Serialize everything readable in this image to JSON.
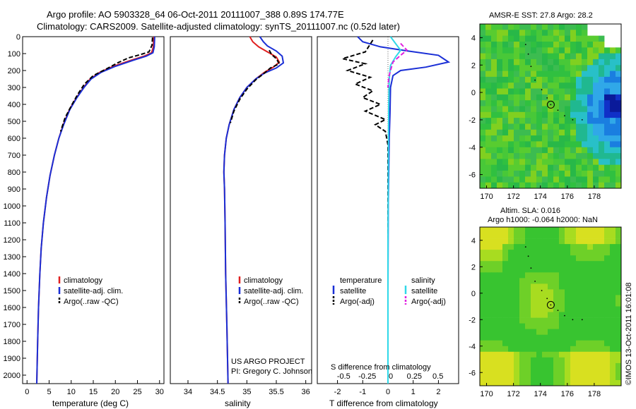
{
  "header": {
    "line1": "Argo profile: AO 5903328_64 06-Oct-2011 20111007_388 0.89S 174.77E",
    "line2": "Climatology: CARS2009. Satellite-adjusted climatology: synTS_20111007.nc (0.52d later)"
  },
  "colors": {
    "climatology": "#e02020",
    "satellite": "#1a2fd6",
    "argo": "#000000",
    "sal_sat": "#30d8e8",
    "sal_argo": "#e020e0"
  },
  "chart_data": [
    {
      "type": "line",
      "id": "temperature",
      "xlabel": "temperature (deg C)",
      "xlim": [
        -1,
        31
      ],
      "ylim": [
        2050,
        0
      ],
      "xticks": [
        0,
        5,
        10,
        15,
        20,
        25,
        30
      ],
      "xticklabels": [
        "0",
        "5",
        "10",
        "15",
        "20",
        "25",
        "30"
      ],
      "yticks": [
        0,
        100,
        200,
        300,
        400,
        500,
        600,
        700,
        800,
        900,
        1000,
        1100,
        1200,
        1300,
        1400,
        1500,
        1600,
        1700,
        1800,
        1900,
        2000
      ],
      "legend": [
        "climatology",
        "satellite-adj. clim.",
        "Argo(..raw -QC)"
      ],
      "series": [
        {
          "name": "climatology",
          "color": "#e02020",
          "points": [
            [
              28.7,
              0
            ],
            [
              28.6,
              60
            ],
            [
              28.2,
              95
            ],
            [
              26.5,
              115
            ],
            [
              23.5,
              140
            ],
            [
              19.5,
              175
            ],
            [
              16.5,
              210
            ],
            [
              14.3,
              250
            ],
            [
              12.8,
              300
            ],
            [
              11.2,
              360
            ],
            [
              9.6,
              430
            ],
            [
              8.2,
              520
            ],
            [
              7.2,
              600
            ],
            [
              6.2,
              700
            ],
            [
              5.2,
              820
            ],
            [
              4.4,
              950
            ],
            [
              3.7,
              1100
            ],
            [
              3.2,
              1250
            ],
            [
              2.9,
              1400
            ],
            [
              2.6,
              1600
            ],
            [
              2.4,
              1800
            ],
            [
              2.2,
              2050
            ]
          ]
        },
        {
          "name": "satellite-adj. clim.",
          "color": "#1a2fd6",
          "points": [
            [
              28.9,
              0
            ],
            [
              28.8,
              60
            ],
            [
              28.5,
              95
            ],
            [
              27.0,
              115
            ],
            [
              24.0,
              140
            ],
            [
              20.0,
              175
            ],
            [
              16.8,
              210
            ],
            [
              14.5,
              250
            ],
            [
              12.9,
              300
            ],
            [
              11.3,
              360
            ],
            [
              9.7,
              430
            ],
            [
              8.3,
              520
            ],
            [
              7.2,
              600
            ],
            [
              6.2,
              700
            ],
            [
              5.2,
              820
            ],
            [
              4.4,
              950
            ],
            [
              3.7,
              1100
            ],
            [
              3.2,
              1250
            ],
            [
              2.9,
              1400
            ],
            [
              2.6,
              1600
            ],
            [
              2.4,
              1800
            ],
            [
              2.2,
              2050
            ]
          ]
        },
        {
          "name": "Argo(..raw -QC)",
          "color": "#000000",
          "dashed": true,
          "points": [
            [
              28.4,
              5
            ],
            [
              28.3,
              50
            ],
            [
              27.6,
              90
            ],
            [
              25.8,
              105
            ],
            [
              23.0,
              125
            ],
            [
              20.5,
              155
            ],
            [
              18.0,
              190
            ],
            [
              15.0,
              230
            ],
            [
              13.0,
              280
            ],
            [
              11.5,
              340
            ],
            [
              10.2,
              400
            ],
            [
              8.6,
              480
            ],
            [
              7.6,
              560
            ]
          ]
        }
      ]
    },
    {
      "type": "line",
      "id": "salinity",
      "xlabel": "salinity",
      "xlim": [
        33.7,
        36.1
      ],
      "ylim": [
        2050,
        0
      ],
      "xticks": [
        34,
        34.5,
        35,
        35.5,
        36
      ],
      "xticklabels": [
        "34",
        "34.5",
        "35",
        "35.5",
        "36"
      ],
      "legend": [
        "climatology",
        "satellite-adj. clim.",
        "Argo(..raw -QC)"
      ],
      "series": [
        {
          "name": "climatology",
          "color": "#e02020",
          "points": [
            [
              35.05,
              0
            ],
            [
              35.1,
              30
            ],
            [
              35.2,
              60
            ],
            [
              35.35,
              90
            ],
            [
              35.5,
              120
            ],
            [
              35.55,
              150
            ],
            [
              35.45,
              180
            ],
            [
              35.3,
              210
            ],
            [
              35.15,
              250
            ],
            [
              35.0,
              300
            ],
            [
              34.88,
              360
            ],
            [
              34.78,
              430
            ],
            [
              34.7,
              520
            ],
            [
              34.65,
              600
            ],
            [
              34.62,
              700
            ],
            [
              34.61,
              800
            ],
            [
              34.62,
              900
            ],
            [
              34.63,
              1100
            ],
            [
              34.64,
              1400
            ],
            [
              34.66,
              1700
            ],
            [
              34.68,
              2050
            ]
          ]
        },
        {
          "name": "satellite-adj. clim.",
          "color": "#1a2fd6",
          "points": [
            [
              35.22,
              0
            ],
            [
              35.28,
              30
            ],
            [
              35.35,
              55
            ],
            [
              35.5,
              85
            ],
            [
              35.6,
              115
            ],
            [
              35.62,
              155
            ],
            [
              35.5,
              185
            ],
            [
              35.3,
              215
            ],
            [
              35.15,
              250
            ],
            [
              35.0,
              300
            ],
            [
              34.88,
              360
            ],
            [
              34.78,
              430
            ],
            [
              34.7,
              520
            ],
            [
              34.65,
              600
            ],
            [
              34.62,
              700
            ],
            [
              34.61,
              800
            ],
            [
              34.62,
              900
            ],
            [
              34.63,
              1100
            ],
            [
              34.64,
              1400
            ],
            [
              34.66,
              1700
            ],
            [
              34.68,
              2050
            ]
          ]
        },
        {
          "name": "Argo(..raw -QC)",
          "color": "#000000",
          "dashed": true,
          "points": [
            [
              35.38,
              80
            ],
            [
              35.42,
              105
            ],
            [
              35.5,
              130
            ],
            [
              35.55,
              160
            ],
            [
              35.4,
              185
            ],
            [
              35.3,
              215
            ],
            [
              35.15,
              255
            ],
            [
              35.0,
              310
            ],
            [
              34.88,
              370
            ],
            [
              34.78,
              440
            ],
            [
              34.72,
              510
            ]
          ]
        }
      ]
    },
    {
      "type": "line",
      "id": "difference",
      "xlabel": "T difference from climatology",
      "xlabel2": "S difference from climatology",
      "xlim": [
        -2.8,
        2.8
      ],
      "ylim": [
        2050,
        0
      ],
      "xticks": [
        -2,
        -1,
        0,
        1,
        2
      ],
      "xticklabels": [
        "-2",
        "-1",
        "0",
        "1",
        "2"
      ],
      "sticks": [
        "-0.5",
        "-0.25",
        "0",
        "0.25",
        "0.5"
      ],
      "legend_left": [
        "temperature",
        "satellite",
        "Argo(-adj)"
      ],
      "legend_right": [
        "salinity",
        "satellite",
        "Argo(-adj)"
      ],
      "series": [
        {
          "name": "T satellite",
          "color": "#1a2fd6",
          "points": [
            [
              -1.2,
              0
            ],
            [
              -1.0,
              30
            ],
            [
              -0.3,
              60
            ],
            [
              0.8,
              85
            ],
            [
              2.0,
              110
            ],
            [
              2.4,
              150
            ],
            [
              1.5,
              180
            ],
            [
              0.5,
              200
            ],
            [
              0.2,
              230
            ],
            [
              0.1,
              300
            ],
            [
              0.08,
              450
            ],
            [
              0.05,
              600
            ],
            [
              0.03,
              800
            ],
            [
              0.01,
              1000
            ],
            [
              0,
              1500
            ],
            [
              0,
              2050
            ]
          ]
        },
        {
          "name": "T Argo(-adj)",
          "color": "#000000",
          "dashed": true,
          "points": [
            [
              -0.6,
              20
            ],
            [
              -0.9,
              90
            ],
            [
              -1.8,
              130
            ],
            [
              -0.9,
              160
            ],
            [
              -1.6,
              200
            ],
            [
              -0.7,
              240
            ],
            [
              -1.3,
              280
            ],
            [
              -0.6,
              320
            ],
            [
              -1.0,
              360
            ],
            [
              -0.3,
              400
            ],
            [
              -0.9,
              440
            ],
            [
              -0.1,
              490
            ],
            [
              -0.5,
              520
            ],
            [
              -0.1,
              560
            ],
            [
              0,
              640
            ],
            [
              0,
              1700
            ],
            [
              0,
              1780
            ]
          ]
        },
        {
          "name": "S satellite",
          "color": "#30d8e8",
          "points": [
            [
              0.1,
              0
            ],
            [
              0.3,
              40
            ],
            [
              0.5,
              80
            ],
            [
              0.3,
              120
            ],
            [
              0.1,
              170
            ],
            [
              0.05,
              250
            ],
            [
              0.03,
              400
            ],
            [
              0.02,
              600
            ],
            [
              0.01,
              900
            ],
            [
              0,
              1200
            ],
            [
              0,
              2050
            ]
          ]
        },
        {
          "name": "S Argo(-adj)",
          "color": "#e020e0",
          "dashed": true,
          "points": [
            [
              0.5,
              40
            ],
            [
              0.75,
              80
            ],
            [
              0.5,
              110
            ],
            [
              0.2,
              150
            ],
            [
              0.1,
              200
            ],
            [
              0.03,
              240
            ],
            [
              0,
              300
            ]
          ]
        }
      ]
    },
    {
      "type": "heatmap",
      "id": "sst_map",
      "title": "AMSR-E SST: 27.8 Argo: 28.2",
      "xlim": [
        169.5,
        180
      ],
      "ylim": [
        -7,
        5
      ],
      "xticklabels": [
        "170",
        "172",
        "174",
        "176",
        "178"
      ],
      "yticklabels": [
        "4",
        "2",
        "0",
        "-2",
        "-4",
        "-6"
      ],
      "float_position": [
        174.77,
        -0.89
      ]
    },
    {
      "type": "heatmap",
      "id": "sla_map",
      "title": "Altim. SLA: 0.016",
      "subtitle": "Argo h1000: -0.064 h2000: NaN",
      "xlim": [
        169.5,
        180
      ],
      "ylim": [
        -7,
        5
      ],
      "xticklabels": [
        "170",
        "172",
        "174",
        "176",
        "178"
      ],
      "yticklabels": [
        "4",
        "2",
        "0",
        "-2",
        "-4",
        "-6"
      ],
      "float_position": [
        174.77,
        -0.89
      ]
    }
  ],
  "credits": {
    "project": "US ARGO PROJECT",
    "pi": "PI: Gregory C. Johnson",
    "stamp": "©IMOS 13-Oct-2011 16:01:08"
  }
}
